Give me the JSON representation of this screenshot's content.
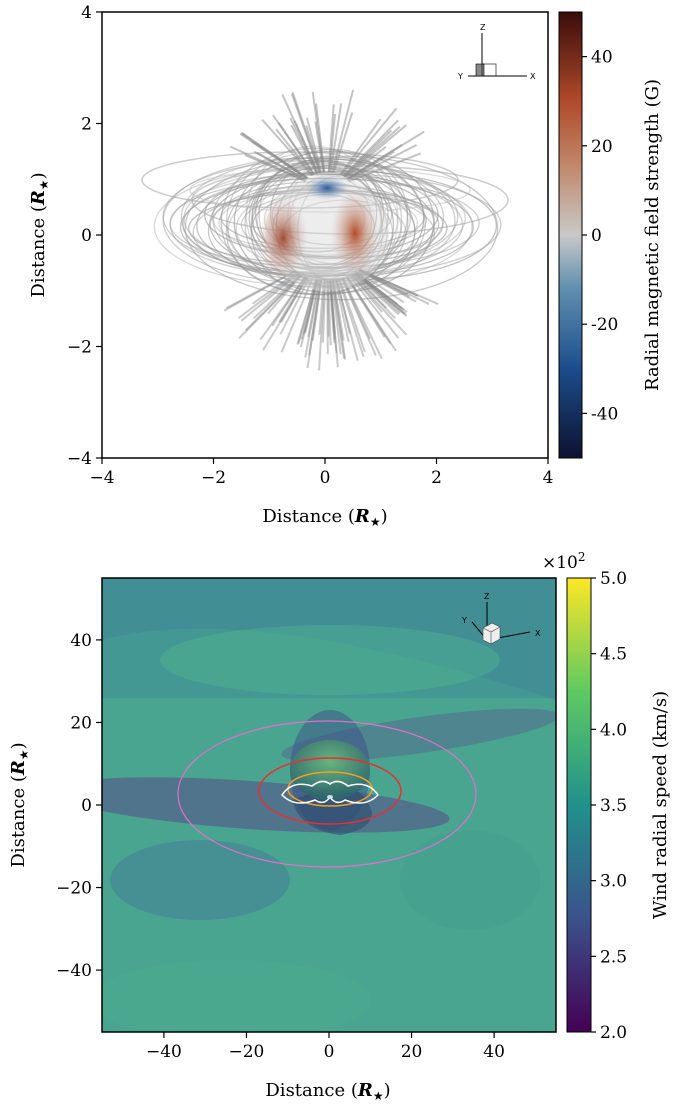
{
  "chart_data": [
    {
      "type": "3d-field-line-plot",
      "xlabel": "Distance",
      "ylabel": "Distance",
      "unit_symbol": "R",
      "unit_subscript": "★",
      "xlim": [
        -4,
        4
      ],
      "ylim": [
        -4,
        4
      ],
      "xticks": [
        -4,
        -2,
        0,
        2,
        4
      ],
      "yticks": [
        -4,
        -2,
        0,
        2,
        4
      ],
      "xtick_labels": [
        "−4",
        "−2",
        "0",
        "2",
        "4"
      ],
      "ytick_labels": [
        "−4",
        "−2",
        "0",
        "2",
        "4"
      ],
      "colorbar": {
        "label": "Radial magnetic field strength (G)",
        "range": [
          -50,
          50
        ],
        "ticks": [
          40,
          20,
          0,
          -20,
          -40
        ],
        "tick_labels": [
          "40",
          "20",
          "0",
          "-20",
          "-40"
        ],
        "colormap": "diverging blue-white-red",
        "colors": [
          "#0d1230",
          "#1c4d8c",
          "#c8c8c8",
          "#b14a2a",
          "#3a0c0c"
        ]
      },
      "orientation_axes": [
        "Z",
        "Y",
        "X"
      ]
    },
    {
      "type": "heatmap",
      "xlabel": "Distance",
      "ylabel": "Distance",
      "unit_symbol": "R",
      "unit_subscript": "★",
      "xlim": [
        -55,
        55
      ],
      "ylim": [
        -55,
        55
      ],
      "xticks": [
        -40,
        -20,
        0,
        20,
        40
      ],
      "yticks": [
        -40,
        -20,
        0,
        20,
        40
      ],
      "xtick_labels": [
        "−40",
        "−20",
        "0",
        "20",
        "40"
      ],
      "ytick_labels": [
        "−40",
        "−20",
        "0",
        "20",
        "40"
      ],
      "colorbar": {
        "label": "Wind radial speed (km/s)",
        "multiplier": "×10",
        "multiplier_exp": "2",
        "range": [
          2.0,
          5.0
        ],
        "ticks": [
          5.0,
          4.5,
          4.0,
          3.5,
          3.0,
          2.5,
          2.0
        ],
        "tick_labels": [
          "5.0",
          "4.5",
          "4.0",
          "3.5",
          "3.0",
          "2.5",
          "2.0"
        ],
        "colormap": "viridis",
        "colors": [
          "#440154",
          "#3b528b",
          "#21918c",
          "#5ec962",
          "#fde725"
        ]
      },
      "orientation_axes": [
        "Z",
        "Y",
        "X"
      ]
    }
  ]
}
